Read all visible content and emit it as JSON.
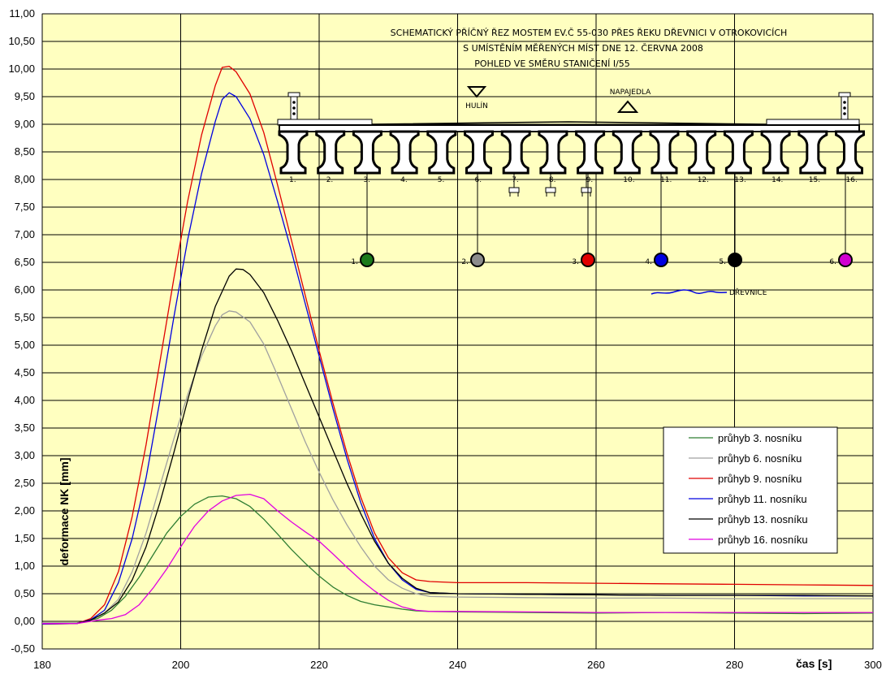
{
  "chart_data": {
    "type": "line",
    "title_lines": [
      "SCHEMATICKÝ PŘÍČNÝ ŘEZ MOSTEM EV.Č 55-030 PŘES ŘEKU DŘEVNICI V OTROKOVICÍCH",
      "S UMÍSTĚNÍM MĚŘENÝCH MÍST DNE 12. ČERVNA 2008",
      "POHLED VE SMĚRU STANIČENÍ I/55"
    ],
    "xlabel": "čas [s]",
    "ylabel": "deformace NK [mm]",
    "xlim": [
      180,
      300
    ],
    "ylim": [
      -0.5,
      11.0
    ],
    "x_ticks": [
      180,
      200,
      220,
      240,
      260,
      280,
      300
    ],
    "y_ticks": [
      "-0,50",
      "0,00",
      "0,50",
      "1,00",
      "1,50",
      "2,00",
      "2,50",
      "3,00",
      "3,50",
      "4,00",
      "4,50",
      "5,00",
      "5,50",
      "6,00",
      "6,50",
      "7,00",
      "7,50",
      "8,00",
      "8,50",
      "9,00",
      "9,50",
      "10,00",
      "10,50",
      "11,00"
    ],
    "grid": true,
    "plot_background": "#FFFFC0",
    "legend_position": "bottom-right",
    "series": [
      {
        "name": "průhyb 3. nosníku",
        "color": "#2E7D32",
        "points": [
          [
            180,
            -0.03
          ],
          [
            183,
            -0.03
          ],
          [
            185,
            -0.03
          ],
          [
            188,
            0.05
          ],
          [
            190,
            0.2
          ],
          [
            192,
            0.45
          ],
          [
            194,
            0.8
          ],
          [
            196,
            1.2
          ],
          [
            198,
            1.6
          ],
          [
            200,
            1.9
          ],
          [
            202,
            2.12
          ],
          [
            204,
            2.25
          ],
          [
            206,
            2.27
          ],
          [
            208,
            2.22
          ],
          [
            210,
            2.08
          ],
          [
            212,
            1.85
          ],
          [
            214,
            1.58
          ],
          [
            216,
            1.3
          ],
          [
            218,
            1.05
          ],
          [
            220,
            0.82
          ],
          [
            222,
            0.62
          ],
          [
            224,
            0.47
          ],
          [
            226,
            0.36
          ],
          [
            228,
            0.3
          ],
          [
            230,
            0.26
          ],
          [
            232,
            0.22
          ],
          [
            234,
            0.19
          ],
          [
            236,
            0.18
          ],
          [
            240,
            0.17
          ],
          [
            250,
            0.16
          ],
          [
            260,
            0.15
          ],
          [
            270,
            0.16
          ],
          [
            280,
            0.15
          ],
          [
            290,
            0.14
          ],
          [
            300,
            0.15
          ]
        ]
      },
      {
        "name": "průhyb 6. nosníku",
        "color": "#A0A0A0",
        "points": [
          [
            180,
            -0.03
          ],
          [
            185,
            -0.03
          ],
          [
            187,
            0.02
          ],
          [
            189,
            0.15
          ],
          [
            191,
            0.4
          ],
          [
            193,
            0.9
          ],
          [
            195,
            1.6
          ],
          [
            197,
            2.45
          ],
          [
            199,
            3.3
          ],
          [
            201,
            4.1
          ],
          [
            203,
            4.8
          ],
          [
            205,
            5.35
          ],
          [
            206,
            5.55
          ],
          [
            207,
            5.62
          ],
          [
            208,
            5.6
          ],
          [
            210,
            5.42
          ],
          [
            212,
            5.02
          ],
          [
            214,
            4.45
          ],
          [
            216,
            3.85
          ],
          [
            218,
            3.25
          ],
          [
            220,
            2.7
          ],
          [
            222,
            2.2
          ],
          [
            224,
            1.75
          ],
          [
            226,
            1.35
          ],
          [
            228,
            1.0
          ],
          [
            230,
            0.75
          ],
          [
            232,
            0.6
          ],
          [
            234,
            0.5
          ],
          [
            236,
            0.45
          ],
          [
            240,
            0.44
          ],
          [
            250,
            0.43
          ],
          [
            260,
            0.42
          ],
          [
            270,
            0.42
          ],
          [
            280,
            0.41
          ],
          [
            290,
            0.41
          ],
          [
            300,
            0.41
          ]
        ]
      },
      {
        "name": "průhyb 9. nosníku",
        "color": "#E00000",
        "points": [
          [
            180,
            -0.05
          ],
          [
            185,
            -0.04
          ],
          [
            187,
            0.05
          ],
          [
            189,
            0.3
          ],
          [
            191,
            0.9
          ],
          [
            193,
            1.9
          ],
          [
            195,
            3.2
          ],
          [
            197,
            4.7
          ],
          [
            199,
            6.2
          ],
          [
            201,
            7.6
          ],
          [
            203,
            8.8
          ],
          [
            205,
            9.7
          ],
          [
            206,
            10.03
          ],
          [
            207,
            10.05
          ],
          [
            208,
            9.95
          ],
          [
            210,
            9.55
          ],
          [
            212,
            8.85
          ],
          [
            214,
            7.9
          ],
          [
            216,
            6.9
          ],
          [
            218,
            5.9
          ],
          [
            220,
            4.9
          ],
          [
            222,
            3.95
          ],
          [
            224,
            3.05
          ],
          [
            226,
            2.25
          ],
          [
            228,
            1.6
          ],
          [
            230,
            1.15
          ],
          [
            232,
            0.88
          ],
          [
            234,
            0.75
          ],
          [
            236,
            0.72
          ],
          [
            240,
            0.7
          ],
          [
            250,
            0.7
          ],
          [
            260,
            0.69
          ],
          [
            270,
            0.68
          ],
          [
            280,
            0.67
          ],
          [
            290,
            0.66
          ],
          [
            300,
            0.65
          ]
        ]
      },
      {
        "name": "průhyb 11. nosníku",
        "color": "#0000E0",
        "points": [
          [
            180,
            -0.05
          ],
          [
            185,
            -0.04
          ],
          [
            187,
            0.03
          ],
          [
            189,
            0.2
          ],
          [
            191,
            0.7
          ],
          [
            193,
            1.5
          ],
          [
            195,
            2.6
          ],
          [
            197,
            4.0
          ],
          [
            199,
            5.5
          ],
          [
            201,
            6.9
          ],
          [
            203,
            8.1
          ],
          [
            205,
            9.05
          ],
          [
            206,
            9.45
          ],
          [
            207,
            9.57
          ],
          [
            208,
            9.5
          ],
          [
            210,
            9.1
          ],
          [
            212,
            8.45
          ],
          [
            214,
            7.6
          ],
          [
            216,
            6.7
          ],
          [
            218,
            5.75
          ],
          [
            220,
            4.8
          ],
          [
            222,
            3.85
          ],
          [
            224,
            2.95
          ],
          [
            226,
            2.15
          ],
          [
            228,
            1.5
          ],
          [
            230,
            1.05
          ],
          [
            232,
            0.75
          ],
          [
            234,
            0.58
          ],
          [
            236,
            0.52
          ],
          [
            240,
            0.5
          ],
          [
            250,
            0.49
          ],
          [
            260,
            0.48
          ],
          [
            270,
            0.47
          ],
          [
            280,
            0.47
          ],
          [
            290,
            0.46
          ],
          [
            300,
            0.46
          ]
        ]
      },
      {
        "name": "průhyb 13. nosníku",
        "color": "#000000",
        "points": [
          [
            180,
            -0.04
          ],
          [
            185,
            -0.04
          ],
          [
            187,
            0.02
          ],
          [
            189,
            0.15
          ],
          [
            191,
            0.35
          ],
          [
            193,
            0.75
          ],
          [
            195,
            1.35
          ],
          [
            197,
            2.15
          ],
          [
            199,
            3.05
          ],
          [
            201,
            4.0
          ],
          [
            203,
            4.9
          ],
          [
            205,
            5.7
          ],
          [
            207,
            6.25
          ],
          [
            208,
            6.38
          ],
          [
            209,
            6.37
          ],
          [
            210,
            6.28
          ],
          [
            212,
            5.95
          ],
          [
            214,
            5.45
          ],
          [
            216,
            4.9
          ],
          [
            218,
            4.3
          ],
          [
            220,
            3.7
          ],
          [
            222,
            3.1
          ],
          [
            224,
            2.5
          ],
          [
            226,
            1.95
          ],
          [
            228,
            1.45
          ],
          [
            230,
            1.05
          ],
          [
            232,
            0.78
          ],
          [
            234,
            0.6
          ],
          [
            236,
            0.52
          ],
          [
            240,
            0.5
          ],
          [
            250,
            0.49
          ],
          [
            260,
            0.48
          ],
          [
            270,
            0.47
          ],
          [
            280,
            0.47
          ],
          [
            290,
            0.47
          ],
          [
            300,
            0.46
          ]
        ]
      },
      {
        "name": "průhyb 16. nosníku",
        "color": "#E000E0",
        "points": [
          [
            180,
            -0.04
          ],
          [
            185,
            -0.04
          ],
          [
            188,
            0.02
          ],
          [
            190,
            0.05
          ],
          [
            192,
            0.12
          ],
          [
            194,
            0.3
          ],
          [
            196,
            0.6
          ],
          [
            198,
            0.95
          ],
          [
            200,
            1.35
          ],
          [
            202,
            1.72
          ],
          [
            204,
            2.0
          ],
          [
            206,
            2.18
          ],
          [
            208,
            2.28
          ],
          [
            210,
            2.3
          ],
          [
            212,
            2.22
          ],
          [
            214,
            2.0
          ],
          [
            216,
            1.8
          ],
          [
            218,
            1.62
          ],
          [
            220,
            1.45
          ],
          [
            222,
            1.22
          ],
          [
            224,
            0.98
          ],
          [
            226,
            0.75
          ],
          [
            228,
            0.55
          ],
          [
            230,
            0.38
          ],
          [
            232,
            0.26
          ],
          [
            234,
            0.2
          ],
          [
            236,
            0.18
          ],
          [
            240,
            0.18
          ],
          [
            250,
            0.17
          ],
          [
            260,
            0.16
          ],
          [
            270,
            0.16
          ],
          [
            280,
            0.16
          ],
          [
            290,
            0.16
          ],
          [
            300,
            0.16
          ]
        ]
      }
    ]
  },
  "diagram": {
    "beam_numbers": [
      "1.",
      "2.",
      "3.",
      "4.",
      "5.",
      "6.",
      "7.",
      "8.",
      "9.",
      "10.",
      "11.",
      "12.",
      "13.",
      "14.",
      "15.",
      "16."
    ],
    "direction_left": "HULÍN",
    "direction_right": "NAPAJEDLA",
    "river_label": "DŘEVNICE",
    "gauges": [
      {
        "label": "1.",
        "beam": 3,
        "color": "#1B7A1B"
      },
      {
        "label": "2.",
        "beam": 6,
        "color": "#8C8C8C"
      },
      {
        "label": "3.",
        "beam": 9,
        "color": "#E00000"
      },
      {
        "label": "4.",
        "beam": 11,
        "color": "#0000E0"
      },
      {
        "label": "5.",
        "beam": 13,
        "color": "#000000"
      },
      {
        "label": "6.",
        "beam": 16,
        "color": "#D000D0"
      }
    ]
  }
}
